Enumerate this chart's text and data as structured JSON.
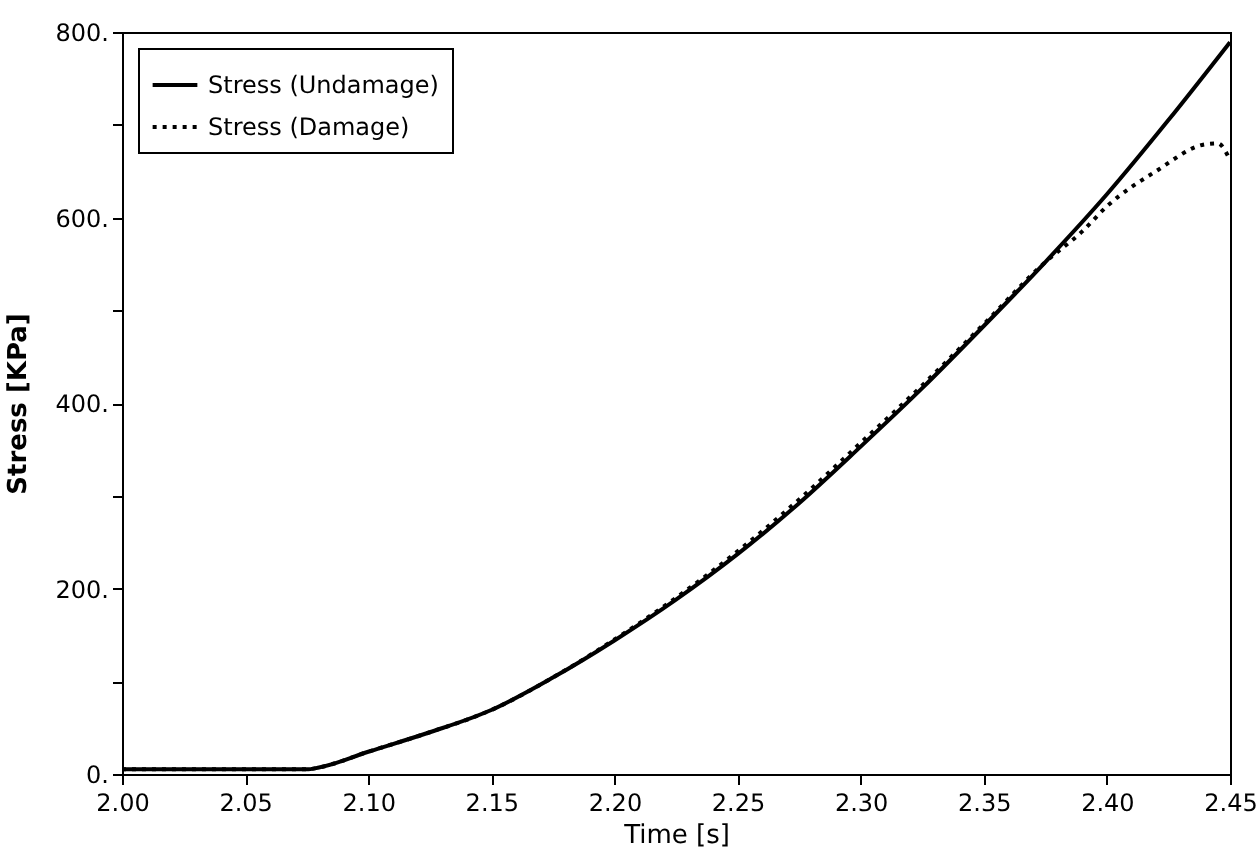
{
  "chart_data": {
    "type": "line",
    "xlabel": "Time [s]",
    "ylabel": "Stress [KPa]",
    "x": [
      2.0,
      2.05,
      2.075,
      2.08,
      2.1,
      2.125,
      2.15,
      2.175,
      2.2,
      2.225,
      2.25,
      2.275,
      2.3,
      2.325,
      2.35,
      2.375,
      2.4,
      2.425,
      2.45
    ],
    "series": [
      {
        "name": "Stress (Undamage)",
        "color": "#000000",
        "line_style": "solid",
        "values": [
          5,
          5,
          5,
          7,
          24,
          45,
          69,
          104,
          144,
          188,
          237,
          292,
          353,
          416,
          483,
          552,
          625,
          705,
          789
        ]
      },
      {
        "name": "Stress (Damage)",
        "color": "#000000",
        "line_style": "dotted",
        "x": [
          2.0,
          2.05,
          2.075,
          2.08,
          2.1,
          2.125,
          2.15,
          2.175,
          2.2,
          2.225,
          2.25,
          2.275,
          2.3,
          2.325,
          2.35,
          2.375,
          2.39,
          2.4,
          2.42,
          2.44,
          2.445,
          2.45
        ],
        "values": [
          5,
          5,
          5,
          7,
          24,
          45,
          69,
          104,
          145,
          190,
          240,
          296,
          357,
          419,
          485,
          552,
          585,
          612,
          650,
          679,
          680,
          662
        ]
      }
    ],
    "xlim": [
      2.0,
      2.45
    ],
    "xticks": [
      {
        "value": 2.0,
        "label": "2.00"
      },
      {
        "value": 2.05,
        "label": "2.05"
      },
      {
        "value": 2.1,
        "label": "2.10"
      },
      {
        "value": 2.15,
        "label": "2.15"
      },
      {
        "value": 2.2,
        "label": "2.20"
      },
      {
        "value": 2.25,
        "label": "2.25"
      },
      {
        "value": 2.3,
        "label": "2.30"
      },
      {
        "value": 2.35,
        "label": "2.35"
      },
      {
        "value": 2.4,
        "label": "2.40"
      },
      {
        "value": 2.45,
        "label": "2.45"
      }
    ],
    "ylim": [
      0,
      800
    ],
    "yticks": [
      {
        "value": 0,
        "label": "0."
      },
      {
        "value": 100,
        "label": null
      },
      {
        "value": 200,
        "label": "200."
      },
      {
        "value": 300,
        "label": null
      },
      {
        "value": 400,
        "label": "400."
      },
      {
        "value": 500,
        "label": null
      },
      {
        "value": 600,
        "label": "600."
      },
      {
        "value": 700,
        "label": null
      },
      {
        "value": 800,
        "label": "800."
      }
    ],
    "grid": false,
    "legend": "top left",
    "marker": "none"
  }
}
